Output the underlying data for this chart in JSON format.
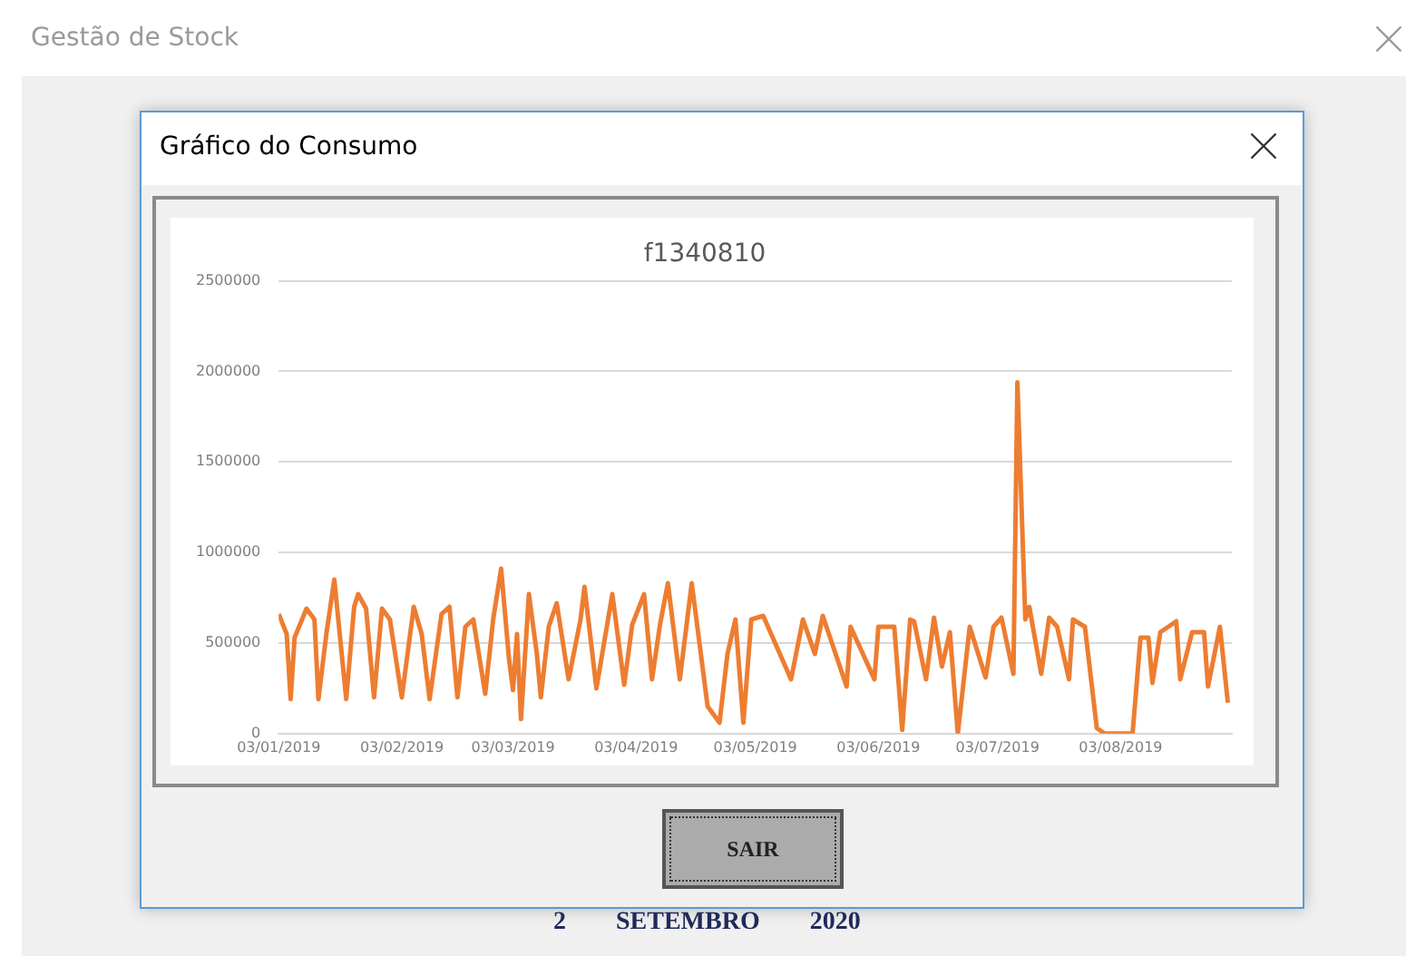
{
  "chart_data": {
    "type": "line",
    "title": "f1340810",
    "annotations": [
      "Gestão de Stock",
      "Gráfico do Consumo",
      "SAIR",
      "2 SETEMBRO 2020"
    ],
    "x": [
      "2019-01-03",
      "2019-01-05",
      "2019-01-06",
      "2019-01-07",
      "2019-01-10",
      "2019-01-12",
      "2019-01-13",
      "2019-01-15",
      "2019-01-17",
      "2019-01-20",
      "2019-01-22",
      "2019-01-23",
      "2019-01-25",
      "2019-01-27",
      "2019-01-29",
      "2019-01-31",
      "2019-02-03",
      "2019-02-06",
      "2019-02-08",
      "2019-02-10",
      "2019-02-13",
      "2019-02-15",
      "2019-02-17",
      "2019-02-19",
      "2019-02-21",
      "2019-02-24",
      "2019-02-26",
      "2019-02-28",
      "2019-03-02",
      "2019-03-03",
      "2019-03-04",
      "2019-03-05",
      "2019-03-07",
      "2019-03-09",
      "2019-03-10",
      "2019-03-12",
      "2019-03-14",
      "2019-03-17",
      "2019-03-20",
      "2019-03-21",
      "2019-03-24",
      "2019-03-28",
      "2019-03-31",
      "2019-04-02",
      "2019-04-05",
      "2019-04-07",
      "2019-04-09",
      "2019-04-11",
      "2019-04-14",
      "2019-04-17",
      "2019-04-21",
      "2019-04-24",
      "2019-04-26",
      "2019-04-28",
      "2019-04-30",
      "2019-05-02",
      "2019-05-05",
      "2019-05-12",
      "2019-05-15",
      "2019-05-18",
      "2019-05-20",
      "2019-05-26",
      "2019-05-27",
      "2019-06-02",
      "2019-06-03",
      "2019-06-07",
      "2019-06-09",
      "2019-06-11",
      "2019-06-12",
      "2019-06-15",
      "2019-06-17",
      "2019-06-19",
      "2019-06-21",
      "2019-06-23",
      "2019-06-26",
      "2019-06-30",
      "2019-07-02",
      "2019-07-04",
      "2019-07-07",
      "2019-07-08",
      "2019-07-10",
      "2019-07-11",
      "2019-07-14",
      "2019-07-16",
      "2019-07-18",
      "2019-07-21",
      "2019-07-22",
      "2019-07-25",
      "2019-07-28",
      "2019-07-30",
      "2019-08-06",
      "2019-08-08",
      "2019-08-10",
      "2019-08-11",
      "2019-08-13",
      "2019-08-17",
      "2019-08-18",
      "2019-08-21",
      "2019-08-24",
      "2019-08-25",
      "2019-08-28",
      "2019-08-30"
    ],
    "series": [
      {
        "color": "#ed7d31",
        "values": [
          660000,
          550000,
          190000,
          530000,
          690000,
          630000,
          190000,
          550000,
          850000,
          190000,
          700000,
          770000,
          690000,
          200000,
          690000,
          630000,
          200000,
          700000,
          550000,
          190000,
          660000,
          700000,
          200000,
          590000,
          630000,
          220000,
          630000,
          910000,
          410000,
          240000,
          550000,
          80000,
          770000,
          440000,
          200000,
          590000,
          720000,
          300000,
          630000,
          810000,
          250000,
          770000,
          270000,
          600000,
          770000,
          300000,
          600000,
          830000,
          300000,
          830000,
          150000,
          60000,
          440000,
          630000,
          60000,
          630000,
          650000,
          300000,
          630000,
          440000,
          650000,
          260000,
          590000,
          300000,
          590000,
          590000,
          20000,
          630000,
          620000,
          300000,
          640000,
          370000,
          560000,
          0,
          590000,
          310000,
          590000,
          640000,
          330000,
          1940000,
          630000,
          700000,
          330000,
          640000,
          590000,
          300000,
          630000,
          590000,
          30000,
          0,
          0,
          530000,
          530000,
          280000,
          560000,
          620000,
          300000,
          560000,
          560000,
          260000,
          590000,
          170000
        ]
      }
    ],
    "xlim": [
      "2019-01-03",
      "2019-08-31"
    ],
    "xticks": [
      {
        "value": "2019-01-03",
        "label": "03/01/2019"
      },
      {
        "value": "2019-02-03",
        "label": "03/02/2019"
      },
      {
        "value": "2019-03-03",
        "label": "03/03/2019"
      },
      {
        "value": "2019-04-03",
        "label": "03/04/2019"
      },
      {
        "value": "2019-05-03",
        "label": "03/05/2019"
      },
      {
        "value": "2019-06-03",
        "label": "03/06/2019"
      },
      {
        "value": "2019-07-03",
        "label": "03/07/2019"
      },
      {
        "value": "2019-08-03",
        "label": "03/08/2019"
      }
    ],
    "ylim": [
      0,
      2500000
    ],
    "yticks": [
      0,
      500000,
      1000000,
      1500000,
      2000000,
      2500000
    ],
    "grid": "y",
    "legend": false,
    "marker": "none",
    "line_style": "solid"
  }
}
